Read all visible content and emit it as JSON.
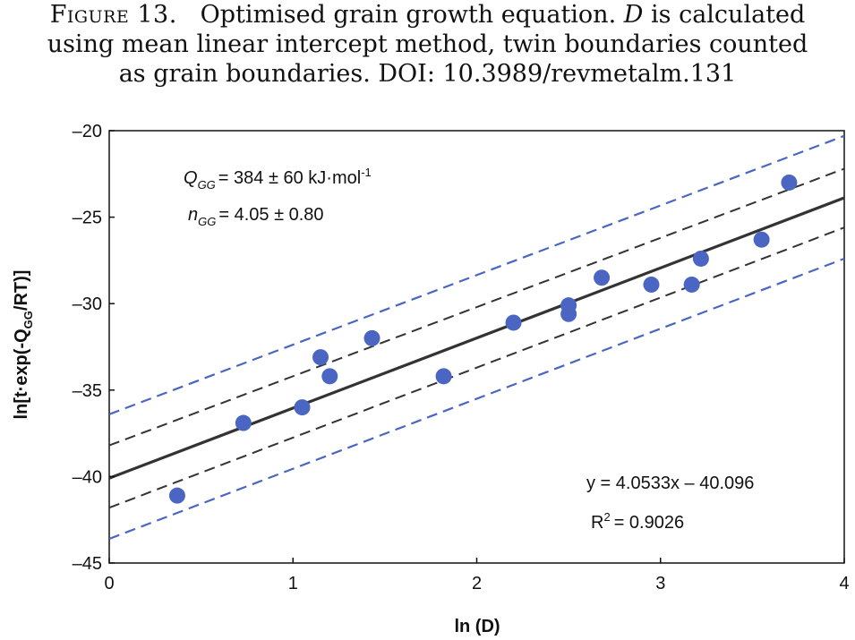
{
  "caption": {
    "label": "Figure 13.",
    "text_part1": "Optimised grain growth equation.",
    "D": "D",
    "text_part2": "is calculated",
    "line2": "using mean linear intercept method, twin boundaries counted",
    "line3": "as grain boundaries.  DOI: 10.3989/revmetalm.131"
  },
  "annotations": {
    "q_main": "Q",
    "q_sub": "GG",
    "q_value": "= 384 ± 60 kJ·mol",
    "q_sup": "-1",
    "n_main": "n",
    "n_sub": "GG",
    "n_value": "= 4.05 ± 0.80",
    "equation": "y = 4.0533x – 40.096",
    "r2_main": "R",
    "r2_sup": "2",
    "r2_value": "= 0.9026"
  },
  "chart_data": {
    "type": "scatter",
    "xlabel": "ln (D)",
    "ylabel_parts": {
      "pre": "ln[t·exp(-Q",
      "sub": "GG",
      "post": "/RT)]"
    },
    "xlim": [
      0,
      4
    ],
    "ylim": [
      -45,
      -20
    ],
    "x_ticks": [
      0,
      1,
      2,
      3,
      4
    ],
    "y_ticks": [
      -20,
      -25,
      -30,
      -35,
      -40,
      -45
    ],
    "y_tick_labels": [
      "–20",
      "–25",
      "–30",
      "–35",
      "–40",
      "–45"
    ],
    "grid": false,
    "points": [
      {
        "x": 0.37,
        "y": -41.1
      },
      {
        "x": 0.73,
        "y": -36.9
      },
      {
        "x": 1.05,
        "y": -36.0
      },
      {
        "x": 1.15,
        "y": -33.1
      },
      {
        "x": 1.2,
        "y": -34.2
      },
      {
        "x": 1.43,
        "y": -32.0
      },
      {
        "x": 1.82,
        "y": -34.2
      },
      {
        "x": 2.2,
        "y": -31.1
      },
      {
        "x": 2.5,
        "y": -30.1
      },
      {
        "x": 2.5,
        "y": -30.6
      },
      {
        "x": 2.68,
        "y": -28.5
      },
      {
        "x": 2.95,
        "y": -28.9
      },
      {
        "x": 3.17,
        "y": -28.9
      },
      {
        "x": 3.22,
        "y": -27.4
      },
      {
        "x": 3.55,
        "y": -26.3
      },
      {
        "x": 3.7,
        "y": -23.0
      }
    ],
    "fit_line": {
      "slope": 4.0533,
      "intercept": -40.096
    },
    "confidence_band": {
      "upper": [
        [
          0,
          -38.2
        ],
        [
          4,
          -22.2
        ]
      ],
      "lower": [
        [
          0,
          -41.8
        ],
        [
          4,
          -25.6
        ]
      ]
    },
    "prediction_band": {
      "upper": [
        [
          0,
          -36.4
        ],
        [
          4,
          -20.3
        ]
      ],
      "lower": [
        [
          0,
          -43.6
        ],
        [
          4,
          -27.4
        ]
      ]
    },
    "colors": {
      "points": "#4a66c2",
      "fit": "#333333",
      "confidence": "#333333",
      "prediction": "#4a66c2"
    }
  }
}
